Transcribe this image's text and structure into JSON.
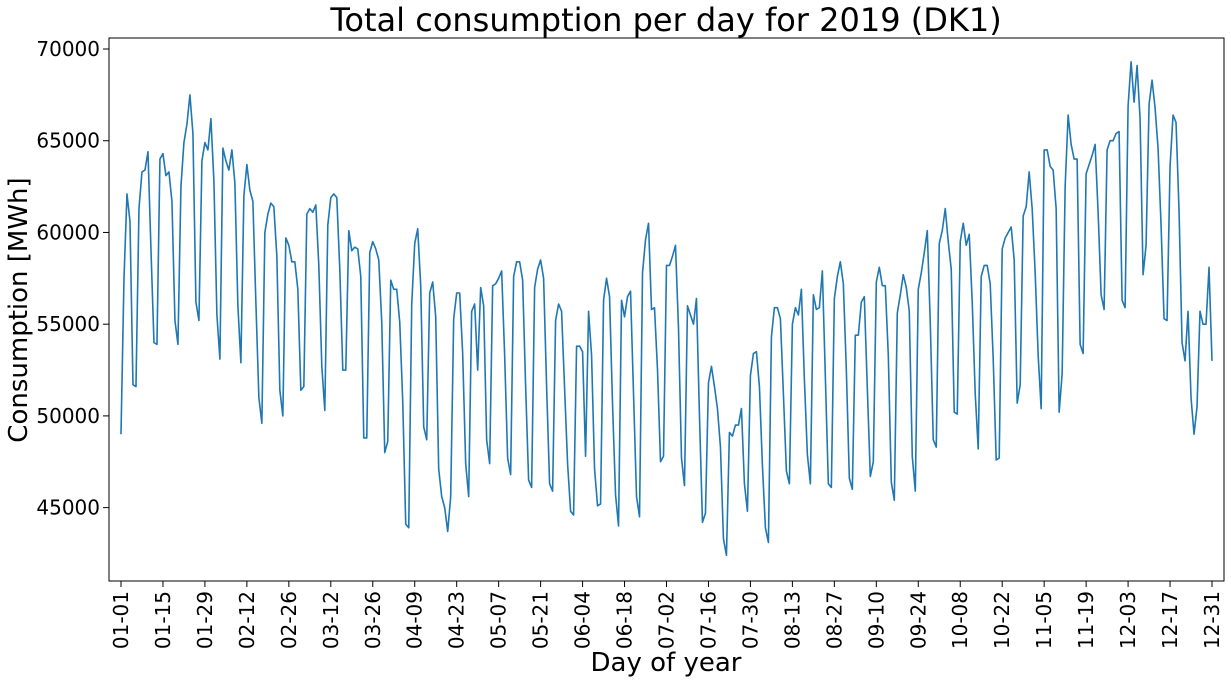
{
  "chart_data": {
    "type": "line",
    "title": "Total consumption per day for 2019 (DK1)",
    "xlabel": "Day of year",
    "ylabel": "Consumption [MWh]",
    "x_tick_labels": [
      "01-01",
      "01-15",
      "01-29",
      "02-12",
      "02-26",
      "03-12",
      "03-26",
      "04-09",
      "04-23",
      "05-07",
      "05-21",
      "06-04",
      "06-18",
      "07-02",
      "07-16",
      "07-30",
      "08-13",
      "08-27",
      "09-10",
      "09-24",
      "10-08",
      "10-22",
      "11-05",
      "11-19",
      "12-03",
      "12-17",
      "12-31"
    ],
    "y_ticks": [
      45000,
      50000,
      55000,
      60000,
      65000,
      70000
    ],
    "y_tick_labels": [
      "45000",
      "50000",
      "55000",
      "60000",
      "65000",
      "70000"
    ],
    "ylim": [
      41000,
      70600
    ],
    "xlim": [
      "2018-12-28",
      "2020-01-04"
    ],
    "grid": false,
    "line_color": "#1f77b4",
    "start_date": "2019-01-01",
    "series": [
      {
        "values": [
          49000,
          57500,
          62100,
          60600,
          51700,
          51600,
          61300,
          63300,
          63400,
          64400,
          59100,
          54000,
          53900,
          64000,
          64300,
          63100,
          63300,
          61700,
          55200,
          53900,
          62500,
          64900,
          65900,
          67500,
          65400,
          56200,
          55200,
          63900,
          64900,
          64500,
          66200,
          62800,
          55500,
          53100,
          64600,
          63900,
          63400,
          64500,
          62700,
          56000,
          52900,
          62000,
          63700,
          62300,
          61700,
          56200,
          51000,
          49600,
          60000,
          61000,
          61600,
          61400,
          58700,
          51400,
          50000,
          59700,
          59300,
          58400,
          58400,
          56900,
          51400,
          51600,
          61000,
          61300,
          61100,
          61500,
          58200,
          52700,
          50300,
          60400,
          61900,
          62100,
          61900,
          58000,
          52500,
          52500,
          60100,
          59000,
          59200,
          59100,
          57600,
          48800,
          48800,
          58900,
          59500,
          59100,
          58500,
          55100,
          48000,
          48600,
          57400,
          56900,
          56900,
          55100,
          50800,
          44100,
          43900,
          56100,
          59400,
          60200,
          57100,
          49400,
          48700,
          56700,
          57300,
          55400,
          47100,
          45600,
          45000,
          43700,
          45600,
          55300,
          56700,
          56700,
          53400,
          47400,
          45600,
          55700,
          56100,
          52500,
          57000,
          56000,
          48700,
          47400,
          57100,
          57200,
          57500,
          57900,
          53300,
          47700,
          46800,
          57600,
          58400,
          58400,
          57400,
          51600,
          46500,
          46100,
          57000,
          58000,
          58500,
          57500,
          51600,
          46300,
          45900,
          55200,
          56100,
          55700,
          51500,
          47400,
          44800,
          44600,
          53800,
          53800,
          53500,
          47800,
          55700,
          53300,
          47100,
          45100,
          45200,
          56300,
          57500,
          56500,
          50600,
          45700,
          44000,
          56300,
          55400,
          56500,
          56800,
          51200,
          45600,
          44500,
          57800,
          59600,
          60500,
          55800,
          55900,
          52500,
          47500,
          47800,
          58200,
          58200,
          58700,
          59300,
          54800,
          47700,
          46200,
          56000,
          55500,
          55000,
          56400,
          50000,
          44200,
          44700,
          51800,
          52700,
          51600,
          50400,
          48300,
          43300,
          42400,
          49100,
          48900,
          49500,
          49500,
          50400,
          46300,
          44800,
          52200,
          53400,
          53500,
          51600,
          47300,
          43900,
          43100,
          54300,
          55900,
          55900,
          55300,
          51200,
          47000,
          46300,
          55000,
          55900,
          55500,
          56900,
          52000,
          47900,
          46300,
          56600,
          55800,
          55900,
          57900,
          52100,
          46300,
          46100,
          56400,
          57600,
          58400,
          57200,
          52500,
          46600,
          46000,
          54400,
          54400,
          56200,
          56500,
          51500,
          46700,
          47500,
          57300,
          58100,
          57100,
          57100,
          53300,
          46400,
          45400,
          55600,
          56600,
          57700,
          57000,
          55700,
          47800,
          45900,
          56900,
          57800,
          58900,
          60100,
          55100,
          48700,
          48300,
          59400,
          60100,
          61300,
          59500,
          58000,
          50200,
          50100,
          59500,
          60500,
          59300,
          59900,
          56200,
          51200,
          48200,
          57600,
          58200,
          58200,
          57200,
          53100,
          47600,
          47700,
          59100,
          59700,
          60000,
          60300,
          58500,
          50700,
          51700,
          60900,
          61400,
          63300,
          61300,
          57800,
          53300,
          50400,
          64500,
          64500,
          63600,
          63400,
          61300,
          50200,
          52300,
          62500,
          66400,
          64800,
          64000,
          64000,
          53900,
          53400,
          63200,
          63700,
          64200,
          64800,
          61100,
          56600,
          55800,
          64500,
          65000,
          65000,
          65400,
          65500,
          56300,
          55900,
          66900,
          69300,
          67100,
          69100,
          66200,
          57700,
          59300,
          67000,
          68300,
          66800,
          64600,
          60400,
          55300,
          55200,
          63600,
          66400,
          66000,
          61200,
          54000,
          53000,
          55700,
          51000,
          49000,
          50500,
          55700,
          55000,
          55000,
          58100,
          53000
        ]
      }
    ]
  }
}
